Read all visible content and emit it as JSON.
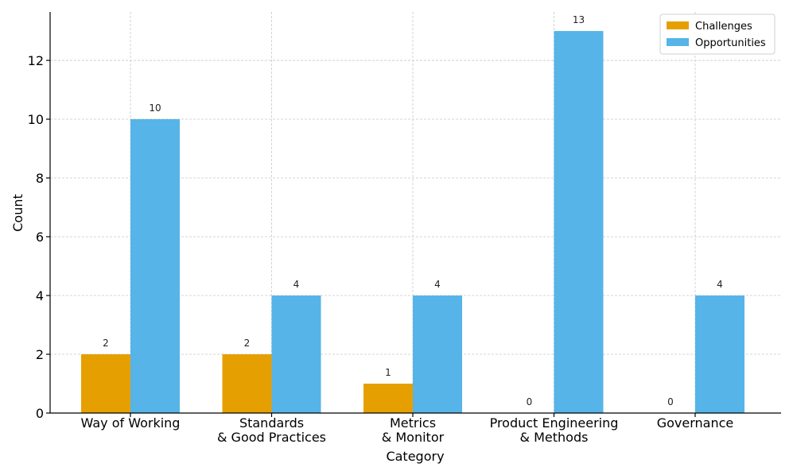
{
  "chart_data": {
    "type": "bar",
    "title": "",
    "xlabel": "Category",
    "ylabel": "Count",
    "categories": [
      [
        "Way of Working"
      ],
      [
        "Standards",
        "& Good Practices"
      ],
      [
        "Metrics",
        "& Monitor"
      ],
      [
        "Product Engineering",
        "& Methods"
      ],
      [
        "Governance"
      ]
    ],
    "series": [
      {
        "name": "Challenges",
        "color": "#E69F00",
        "values": [
          2,
          2,
          1,
          0,
          0
        ]
      },
      {
        "name": "Opportunities",
        "color": "#56B4E9",
        "values": [
          10,
          4,
          4,
          13,
          4
        ]
      }
    ],
    "ylim": [
      0,
      13.65
    ],
    "yticks": [
      0,
      2,
      4,
      6,
      8,
      10,
      12
    ],
    "grid": true,
    "legend_position": "top-right"
  }
}
